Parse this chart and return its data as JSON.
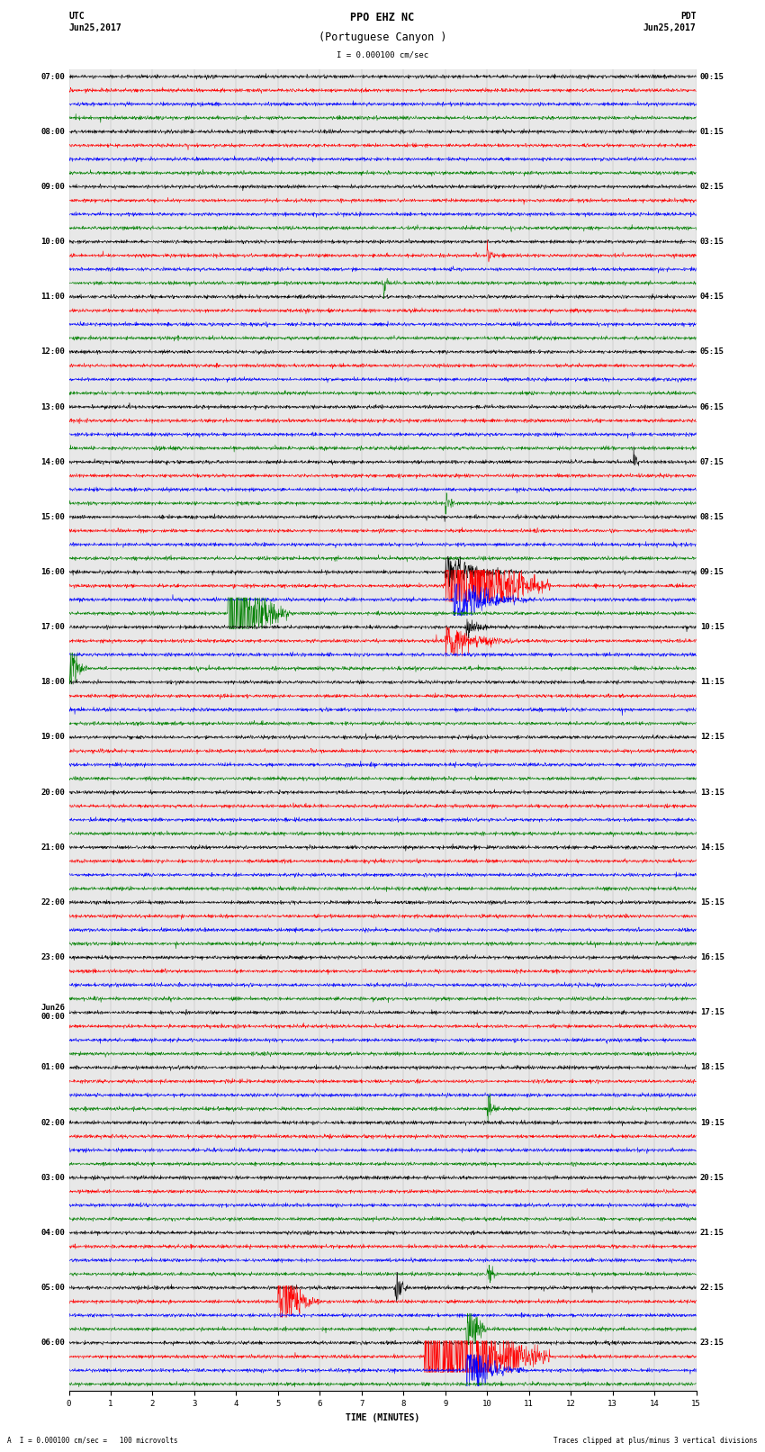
{
  "title": "PPO EHZ NC",
  "subtitle": "(Portuguese Canyon )",
  "scale_label": "I = 0.000100 cm/sec",
  "utc_label": "UTC",
  "utc_date": "Jun25,2017",
  "pdt_label": "PDT",
  "pdt_date": "Jun25,2017",
  "xlabel": "TIME (MINUTES)",
  "footer_left": "A  I = 0.000100 cm/sec =   100 microvolts",
  "footer_right": "Traces clipped at plus/minus 3 vertical divisions",
  "left_times": [
    "07:00",
    "08:00",
    "09:00",
    "10:00",
    "11:00",
    "12:00",
    "13:00",
    "14:00",
    "15:00",
    "16:00",
    "17:00",
    "18:00",
    "19:00",
    "20:00",
    "21:00",
    "22:00",
    "23:00",
    "Jun26\n00:00",
    "01:00",
    "02:00",
    "03:00",
    "04:00",
    "05:00",
    "06:00"
  ],
  "right_times": [
    "00:15",
    "01:15",
    "02:15",
    "03:15",
    "04:15",
    "05:15",
    "06:15",
    "07:15",
    "08:15",
    "09:15",
    "10:15",
    "11:15",
    "12:15",
    "13:15",
    "14:15",
    "15:15",
    "16:15",
    "17:15",
    "18:15",
    "19:15",
    "20:15",
    "21:15",
    "22:15",
    "23:15"
  ],
  "num_hour_rows": 24,
  "traces_per_hour": 4,
  "trace_colors": [
    "#000000",
    "#ff0000",
    "#0000ff",
    "#008000"
  ],
  "fig_width": 8.5,
  "fig_height": 16.13,
  "bg_color": "#ffffff",
  "plot_bg_color": "#e8e8e8",
  "xmin": 0,
  "xmax": 15,
  "xticks": [
    0,
    1,
    2,
    3,
    4,
    5,
    6,
    7,
    8,
    9,
    10,
    11,
    12,
    13,
    14,
    15
  ],
  "title_fontsize": 8.5,
  "label_fontsize": 7,
  "tick_fontsize": 6.5,
  "dpi": 100,
  "noise_base": 0.15,
  "amp_scale": 0.38
}
